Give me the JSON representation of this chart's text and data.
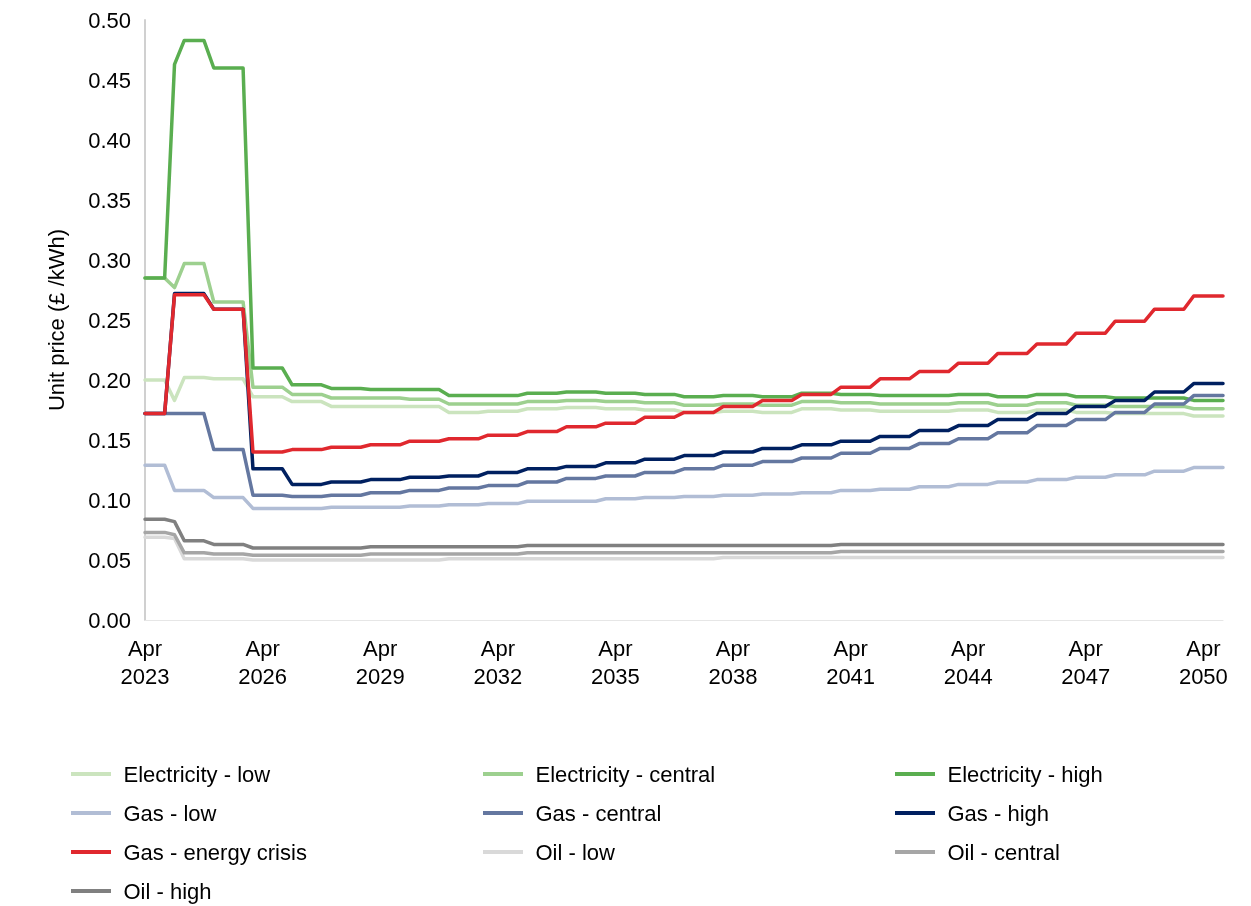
{
  "chart_data": {
    "type": "line",
    "ylabel": "Unit price (£ /kWh)",
    "legend": "bottom",
    "x": [
      "2023-04",
      "2023-10",
      "2024-01",
      "2024-04",
      "2024-10",
      "2025-01",
      "2025-10",
      "2026-01",
      "2026-10",
      "2027-01",
      "2027-10",
      "2028-01",
      "2028-10",
      "2029-01",
      "2029-10",
      "2030-01",
      "2030-10",
      "2031-01",
      "2031-10",
      "2032-01",
      "2032-10",
      "2033-01",
      "2033-10",
      "2034-01",
      "2034-10",
      "2035-01",
      "2035-10",
      "2036-01",
      "2036-10",
      "2037-01",
      "2037-10",
      "2038-01",
      "2038-10",
      "2039-01",
      "2039-10",
      "2040-01",
      "2040-10",
      "2041-01",
      "2041-10",
      "2042-01",
      "2042-10",
      "2043-01",
      "2043-10",
      "2044-01",
      "2044-10",
      "2045-01",
      "2045-10",
      "2046-01",
      "2046-10",
      "2047-01",
      "2047-10",
      "2048-01",
      "2048-10",
      "2049-01",
      "2049-10",
      "2050-01",
      "2050-10"
    ],
    "xticks": [
      {
        "value": "2023-04",
        "label": "Apr 2023"
      },
      {
        "value": "2026-04",
        "label": "Apr 2026"
      },
      {
        "value": "2029-04",
        "label": "Apr 2029"
      },
      {
        "value": "2032-04",
        "label": "Apr 2032"
      },
      {
        "value": "2035-04",
        "label": "Apr 2035"
      },
      {
        "value": "2038-04",
        "label": "Apr 2038"
      },
      {
        "value": "2041-04",
        "label": "Apr 2041"
      },
      {
        "value": "2044-04",
        "label": "Apr 2044"
      },
      {
        "value": "2047-04",
        "label": "Apr 2047"
      },
      {
        "value": "2050-04",
        "label": "Apr 2050"
      }
    ],
    "xlim": [
      "2023-04",
      "2050-10"
    ],
    "ylim": [
      0,
      0.5
    ],
    "yticks": [
      {
        "value": 0,
        "label": "0.00"
      },
      {
        "value": 0.05,
        "label": "0.05"
      },
      {
        "value": 0.1,
        "label": "0.10"
      },
      {
        "value": 0.15,
        "label": "0.15"
      },
      {
        "value": 0.2,
        "label": "0.20"
      },
      {
        "value": 0.25,
        "label": "0.25"
      },
      {
        "value": 0.3,
        "label": "0.30"
      },
      {
        "value": 0.35,
        "label": "0.35"
      },
      {
        "value": 0.4,
        "label": "0.40"
      },
      {
        "value": 0.45,
        "label": "0.45"
      },
      {
        "value": 0.5,
        "label": "0.50"
      }
    ],
    "series": [
      {
        "name": "Electricity - low",
        "color": "#cbe4be",
        "values": [
          0.2,
          0.2,
          0.183,
          0.202,
          0.202,
          0.201,
          0.201,
          0.186,
          0.186,
          0.182,
          0.182,
          0.178,
          0.178,
          0.178,
          0.178,
          0.178,
          0.178,
          0.173,
          0.173,
          0.174,
          0.174,
          0.176,
          0.176,
          0.177,
          0.177,
          0.176,
          0.176,
          0.175,
          0.175,
          0.173,
          0.173,
          0.174,
          0.174,
          0.173,
          0.173,
          0.176,
          0.176,
          0.175,
          0.175,
          0.174,
          0.174,
          0.174,
          0.174,
          0.175,
          0.175,
          0.173,
          0.173,
          0.175,
          0.175,
          0.173,
          0.173,
          0.172,
          0.172,
          0.172,
          0.172,
          0.17,
          0.17
        ]
      },
      {
        "name": "Electricity - central",
        "color": "#9dd08f",
        "values": [
          0.285,
          0.285,
          0.277,
          0.297,
          0.297,
          0.265,
          0.265,
          0.194,
          0.194,
          0.188,
          0.188,
          0.185,
          0.185,
          0.185,
          0.185,
          0.184,
          0.184,
          0.18,
          0.18,
          0.18,
          0.18,
          0.182,
          0.182,
          0.183,
          0.183,
          0.182,
          0.182,
          0.181,
          0.181,
          0.179,
          0.179,
          0.18,
          0.18,
          0.179,
          0.179,
          0.182,
          0.182,
          0.181,
          0.181,
          0.18,
          0.18,
          0.18,
          0.18,
          0.181,
          0.181,
          0.179,
          0.179,
          0.181,
          0.181,
          0.179,
          0.179,
          0.178,
          0.178,
          0.178,
          0.178,
          0.176,
          0.176
        ]
      },
      {
        "name": "Electricity - high",
        "color": "#5aae50",
        "values": [
          0.285,
          0.285,
          0.463,
          0.483,
          0.483,
          0.46,
          0.46,
          0.21,
          0.21,
          0.196,
          0.196,
          0.193,
          0.193,
          0.192,
          0.192,
          0.192,
          0.192,
          0.187,
          0.187,
          0.187,
          0.187,
          0.189,
          0.189,
          0.19,
          0.19,
          0.189,
          0.189,
          0.188,
          0.188,
          0.186,
          0.186,
          0.187,
          0.187,
          0.186,
          0.186,
          0.189,
          0.189,
          0.188,
          0.188,
          0.187,
          0.187,
          0.187,
          0.187,
          0.188,
          0.188,
          0.186,
          0.186,
          0.188,
          0.188,
          0.186,
          0.186,
          0.185,
          0.185,
          0.185,
          0.185,
          0.183,
          0.183
        ]
      },
      {
        "name": "Gas - low",
        "color": "#b1bdd5",
        "values": [
          0.129,
          0.129,
          0.108,
          0.108,
          0.108,
          0.102,
          0.102,
          0.093,
          0.093,
          0.093,
          0.093,
          0.094,
          0.094,
          0.094,
          0.094,
          0.095,
          0.095,
          0.096,
          0.096,
          0.097,
          0.097,
          0.099,
          0.099,
          0.099,
          0.099,
          0.101,
          0.101,
          0.102,
          0.102,
          0.103,
          0.103,
          0.104,
          0.104,
          0.105,
          0.105,
          0.106,
          0.106,
          0.108,
          0.108,
          0.109,
          0.109,
          0.111,
          0.111,
          0.113,
          0.113,
          0.115,
          0.115,
          0.117,
          0.117,
          0.119,
          0.119,
          0.121,
          0.121,
          0.124,
          0.124,
          0.127,
          0.127
        ]
      },
      {
        "name": "Gas - central",
        "color": "#6477a0",
        "values": [
          0.172,
          0.172,
          0.172,
          0.172,
          0.172,
          0.142,
          0.142,
          0.104,
          0.104,
          0.103,
          0.103,
          0.104,
          0.104,
          0.106,
          0.106,
          0.108,
          0.108,
          0.11,
          0.11,
          0.112,
          0.112,
          0.115,
          0.115,
          0.118,
          0.118,
          0.12,
          0.12,
          0.123,
          0.123,
          0.126,
          0.126,
          0.129,
          0.129,
          0.132,
          0.132,
          0.135,
          0.135,
          0.139,
          0.139,
          0.143,
          0.143,
          0.147,
          0.147,
          0.151,
          0.151,
          0.156,
          0.156,
          0.162,
          0.162,
          0.167,
          0.167,
          0.173,
          0.173,
          0.18,
          0.18,
          0.187,
          0.187
        ]
      },
      {
        "name": "Gas - high",
        "color": "#002060",
        "values": [
          0.172,
          0.172,
          0.272,
          0.272,
          0.272,
          0.259,
          0.259,
          0.126,
          0.126,
          0.113,
          0.113,
          0.115,
          0.115,
          0.117,
          0.117,
          0.119,
          0.119,
          0.12,
          0.12,
          0.123,
          0.123,
          0.126,
          0.126,
          0.128,
          0.128,
          0.131,
          0.131,
          0.134,
          0.134,
          0.137,
          0.137,
          0.14,
          0.14,
          0.143,
          0.143,
          0.146,
          0.146,
          0.149,
          0.149,
          0.153,
          0.153,
          0.158,
          0.158,
          0.162,
          0.162,
          0.167,
          0.167,
          0.172,
          0.172,
          0.178,
          0.178,
          0.183,
          0.183,
          0.19,
          0.19,
          0.197,
          0.197
        ]
      },
      {
        "name": "Gas - energy crisis",
        "color": "#e0282e",
        "values": [
          0.172,
          0.172,
          0.271,
          0.271,
          0.271,
          0.259,
          0.259,
          0.14,
          0.14,
          0.142,
          0.142,
          0.144,
          0.144,
          0.146,
          0.146,
          0.149,
          0.149,
          0.151,
          0.151,
          0.154,
          0.154,
          0.157,
          0.157,
          0.161,
          0.161,
          0.164,
          0.164,
          0.169,
          0.169,
          0.173,
          0.173,
          0.178,
          0.178,
          0.183,
          0.183,
          0.188,
          0.188,
          0.194,
          0.194,
          0.201,
          0.201,
          0.207,
          0.207,
          0.214,
          0.214,
          0.222,
          0.222,
          0.23,
          0.23,
          0.239,
          0.239,
          0.249,
          0.249,
          0.259,
          0.259,
          0.27,
          0.27
        ]
      },
      {
        "name": "Oil - low",
        "color": "#d9d9d9",
        "values": [
          0.069,
          0.069,
          0.068,
          0.051,
          0.051,
          0.051,
          0.051,
          0.05,
          0.05,
          0.05,
          0.05,
          0.05,
          0.05,
          0.05,
          0.05,
          0.05,
          0.05,
          0.051,
          0.051,
          0.051,
          0.051,
          0.051,
          0.051,
          0.051,
          0.051,
          0.051,
          0.051,
          0.051,
          0.051,
          0.051,
          0.051,
          0.052,
          0.052,
          0.052,
          0.052,
          0.052,
          0.052,
          0.052,
          0.052,
          0.052,
          0.052,
          0.052,
          0.052,
          0.052,
          0.052,
          0.052,
          0.052,
          0.052,
          0.052,
          0.052,
          0.052,
          0.052,
          0.052,
          0.052,
          0.052,
          0.052,
          0.052
        ]
      },
      {
        "name": "Oil - central",
        "color": "#a6a6a6",
        "values": [
          0.073,
          0.073,
          0.071,
          0.056,
          0.056,
          0.055,
          0.055,
          0.054,
          0.054,
          0.054,
          0.054,
          0.054,
          0.054,
          0.055,
          0.055,
          0.055,
          0.055,
          0.055,
          0.055,
          0.055,
          0.055,
          0.056,
          0.056,
          0.056,
          0.056,
          0.056,
          0.056,
          0.056,
          0.056,
          0.056,
          0.056,
          0.056,
          0.056,
          0.056,
          0.056,
          0.056,
          0.056,
          0.057,
          0.057,
          0.057,
          0.057,
          0.057,
          0.057,
          0.057,
          0.057,
          0.057,
          0.057,
          0.057,
          0.057,
          0.057,
          0.057,
          0.057,
          0.057,
          0.057,
          0.057,
          0.057,
          0.057
        ]
      },
      {
        "name": "Oil - high",
        "color": "#808080",
        "values": [
          0.084,
          0.084,
          0.082,
          0.066,
          0.066,
          0.063,
          0.063,
          0.06,
          0.06,
          0.06,
          0.06,
          0.06,
          0.06,
          0.061,
          0.061,
          0.061,
          0.061,
          0.061,
          0.061,
          0.061,
          0.061,
          0.062,
          0.062,
          0.062,
          0.062,
          0.062,
          0.062,
          0.062,
          0.062,
          0.062,
          0.062,
          0.062,
          0.062,
          0.062,
          0.062,
          0.062,
          0.062,
          0.063,
          0.063,
          0.063,
          0.063,
          0.063,
          0.063,
          0.063,
          0.063,
          0.063,
          0.063,
          0.063,
          0.063,
          0.063,
          0.063,
          0.063,
          0.063,
          0.063,
          0.063,
          0.063,
          0.063
        ]
      }
    ]
  }
}
